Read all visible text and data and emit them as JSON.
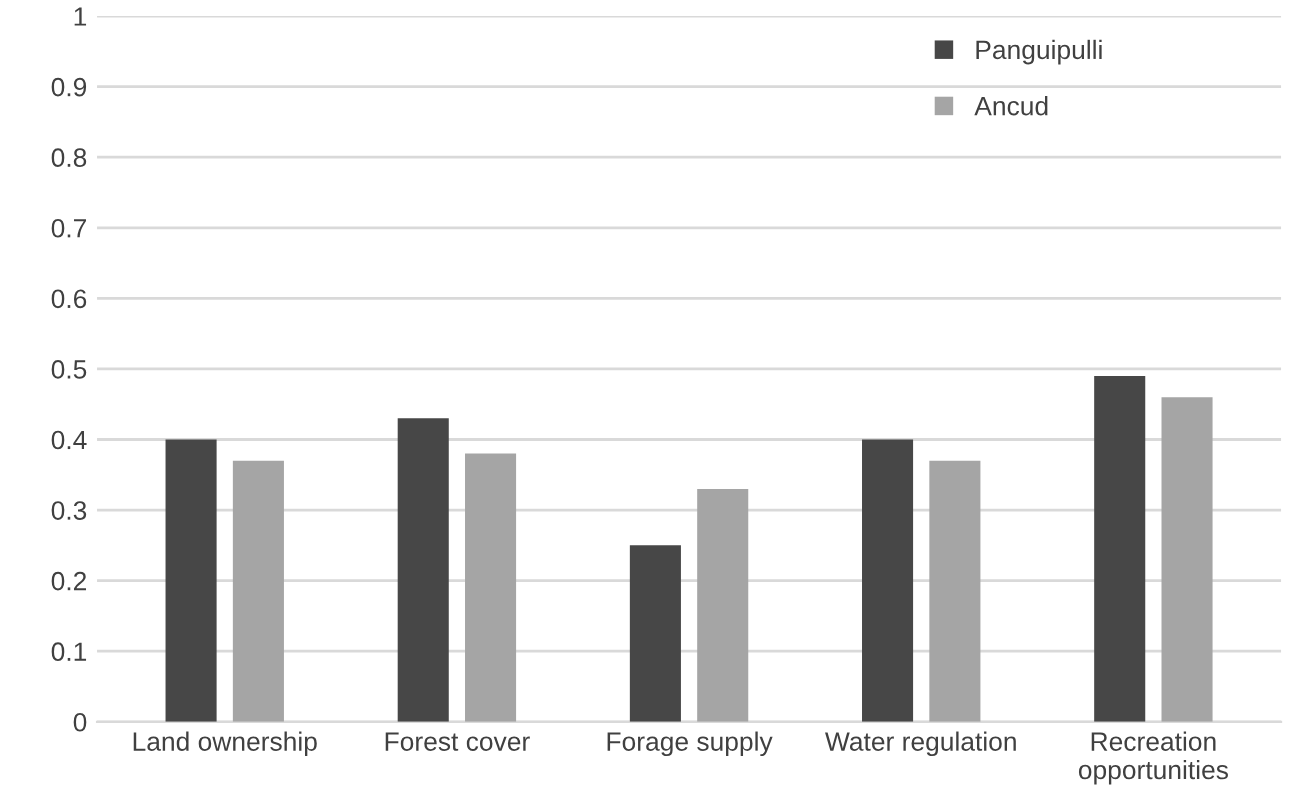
{
  "chart_data": {
    "type": "bar",
    "categories": [
      "Land ownership",
      "Forest cover",
      "Forage supply",
      "Water regulation",
      "Recreation\nopportunities"
    ],
    "series": [
      {
        "name": "Panguipulli",
        "color": "#474747",
        "values": [
          0.4,
          0.43,
          0.25,
          0.4,
          0.49
        ]
      },
      {
        "name": "Ancud",
        "color": "#a5a5a5",
        "values": [
          0.37,
          0.38,
          0.33,
          0.37,
          0.46
        ]
      }
    ],
    "ylim": [
      0,
      1
    ],
    "yticks": [
      0,
      0.1,
      0.2,
      0.3,
      0.4,
      0.5,
      0.6,
      0.7,
      0.8,
      0.9,
      1
    ],
    "grid": "y",
    "legend": "top right"
  }
}
